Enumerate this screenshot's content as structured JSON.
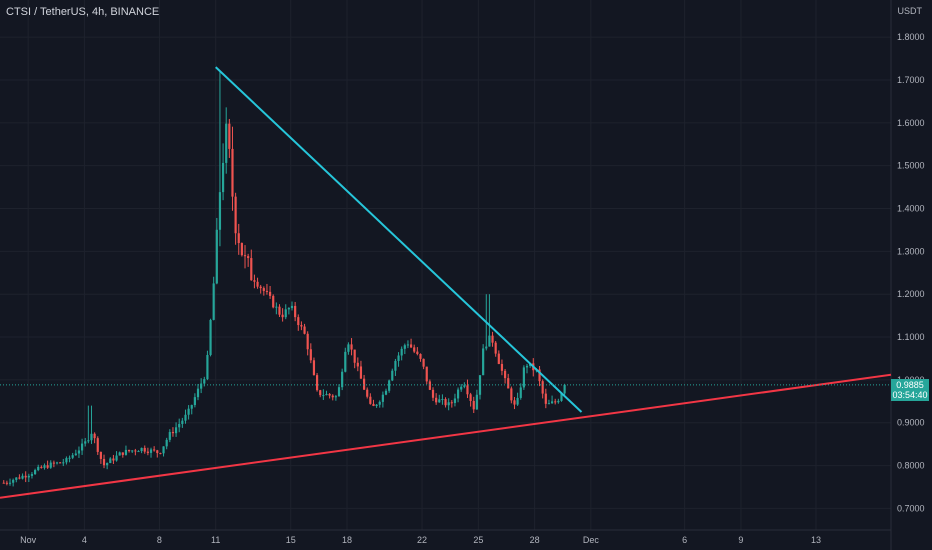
{
  "header": {
    "symbol": "CTSI / TetherUS, 4h, BINANCE"
  },
  "price_axis": {
    "currency": "USDT"
  },
  "last_price": {
    "value": "0.9885",
    "countdown": "03:54:40"
  },
  "colors": {
    "up": "#26a69a",
    "down": "#ef5350",
    "resistance": "#26c6da",
    "support": "#f23645",
    "bg": "#131722",
    "grid": "#1e222d",
    "text": "#b2b5be"
  },
  "chart_data": {
    "type": "candlestick",
    "title": "CTSI / TetherUS, 4h, BINANCE",
    "y_ticks": [
      "1.8000",
      "1.7000",
      "1.6000",
      "1.5000",
      "1.4000",
      "1.3000",
      "1.2000",
      "1.1000",
      "1.0000",
      "0.9000",
      "0.8000",
      "0.7000"
    ],
    "ylim": [
      0.68,
      1.84
    ],
    "x_ticks": [
      {
        "label": "Nov",
        "day": 0
      },
      {
        "label": "4",
        "day": 3
      },
      {
        "label": "8",
        "day": 7
      },
      {
        "label": "11",
        "day": 10
      },
      {
        "label": "15",
        "day": 14
      },
      {
        "label": "18",
        "day": 17
      },
      {
        "label": "22",
        "day": 21
      },
      {
        "label": "25",
        "day": 24
      },
      {
        "label": "28",
        "day": 27
      },
      {
        "label": "Dec",
        "day": 30
      },
      {
        "label": "6",
        "day": 35
      },
      {
        "label": "9",
        "day": 38
      },
      {
        "label": "13",
        "day": 42
      }
    ],
    "xlim": [
      -1.5,
      46
    ],
    "last_price": 0.9885,
    "anchors": [
      [
        -1.3,
        0.76
      ],
      [
        0,
        0.78
      ],
      [
        1,
        0.8
      ],
      [
        2,
        0.81
      ],
      [
        3,
        0.85
      ],
      [
        3.4,
        0.88
      ],
      [
        4,
        0.8
      ],
      [
        5,
        0.83
      ],
      [
        6,
        0.84
      ],
      [
        7,
        0.83
      ],
      [
        7.5,
        0.87
      ],
      [
        8.5,
        0.92
      ],
      [
        9.5,
        1.02
      ],
      [
        10,
        1.28
      ],
      [
        10.3,
        1.5
      ],
      [
        10.6,
        1.58
      ],
      [
        11,
        1.38
      ],
      [
        11.5,
        1.28
      ],
      [
        12,
        1.24
      ],
      [
        12.7,
        1.2
      ],
      [
        13.5,
        1.15
      ],
      [
        14,
        1.17
      ],
      [
        14.8,
        1.1
      ],
      [
        15.4,
        0.97
      ],
      [
        16.5,
        0.96
      ],
      [
        17,
        1.1
      ],
      [
        17.6,
        1.02
      ],
      [
        18.3,
        0.93
      ],
      [
        19,
        0.97
      ],
      [
        19.5,
        1.04
      ],
      [
        20.2,
        1.09
      ],
      [
        21,
        1.04
      ],
      [
        21.5,
        0.96
      ],
      [
        22.5,
        0.94
      ],
      [
        23.2,
        1.0
      ],
      [
        23.8,
        0.93
      ],
      [
        24.3,
        1.08
      ],
      [
        24.7,
        1.1
      ],
      [
        25.4,
        1.0
      ],
      [
        26,
        0.93
      ],
      [
        26.5,
        1.04
      ],
      [
        27.1,
        1.02
      ],
      [
        27.6,
        0.94
      ],
      [
        28.2,
        0.95
      ],
      [
        28.6,
        0.9885
      ]
    ],
    "n_candles": 180,
    "trendlines": [
      {
        "name": "descending resistance",
        "color": "#26c6da",
        "points": [
          [
            10,
            1.73
          ],
          [
            29.5,
            0.925
          ]
        ]
      },
      {
        "name": "ascending support",
        "color": "#f23645",
        "points": [
          [
            -1.5,
            0.725
          ],
          [
            46,
            1.012
          ]
        ]
      }
    ]
  }
}
